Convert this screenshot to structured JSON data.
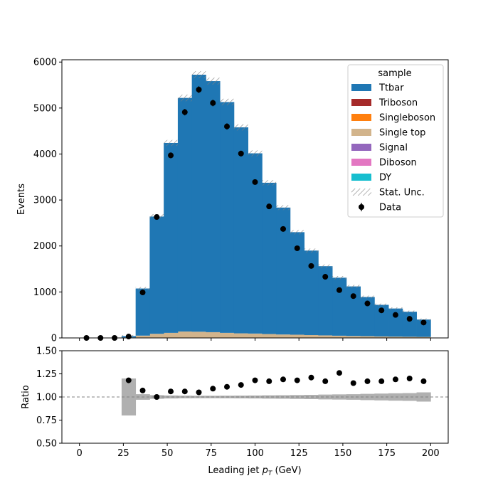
{
  "chart_data": [
    {
      "type": "bar",
      "subtype": "stacked-histogram",
      "bin_edges": [
        0,
        8,
        16,
        24,
        32,
        40,
        48,
        56,
        64,
        72,
        80,
        88,
        96,
        104,
        112,
        120,
        128,
        136,
        144,
        152,
        160,
        168,
        176,
        184,
        192,
        200
      ],
      "ylabel": "Events",
      "ylim": [
        0,
        6050
      ],
      "yticks": [
        0,
        1000,
        2000,
        3000,
        4000,
        5000,
        6000
      ],
      "series": [
        {
          "name": "Single top",
          "color": "#d2b48c",
          "values": [
            0,
            0,
            0,
            10,
            50,
            90,
            110,
            140,
            135,
            125,
            110,
            100,
            95,
            85,
            75,
            70,
            62,
            55,
            48,
            42,
            38,
            32,
            28,
            25,
            22
          ]
        },
        {
          "name": "Ttbar",
          "color": "#1f77b4",
          "values": [
            0,
            0,
            0,
            30,
            1025,
            2550,
            4130,
            5080,
            5590,
            5460,
            5020,
            4480,
            3920,
            3290,
            2760,
            2230,
            1838,
            1505,
            1262,
            1078,
            852,
            688,
            612,
            545,
            378
          ]
        },
        {
          "name": "Triboson",
          "color": "#a52a2a",
          "values": []
        },
        {
          "name": "Singleboson",
          "color": "#ff7f0e",
          "values": []
        },
        {
          "name": "Signal",
          "color": "#9467bd",
          "values": []
        },
        {
          "name": "Diboson",
          "color": "#e377c2",
          "values": []
        },
        {
          "name": "DY",
          "color": "#17becf",
          "values": []
        }
      ],
      "totals": [
        0,
        0,
        0,
        40,
        1075,
        2640,
        4240,
        5220,
        5725,
        5585,
        5130,
        4580,
        4015,
        3375,
        2835,
        2300,
        1900,
        1560,
        1310,
        1120,
        890,
        720,
        640,
        570,
        400
      ],
      "data_points": {
        "name": "Data",
        "x": [
          4,
          12,
          20,
          28,
          36,
          44,
          52,
          60,
          68,
          76,
          84,
          92,
          100,
          108,
          116,
          124,
          132,
          140,
          148,
          156,
          164,
          172,
          180,
          188,
          196
        ],
        "y": [
          0,
          0,
          0,
          30,
          990,
          2630,
          3970,
          4910,
          5400,
          5110,
          4600,
          4010,
          3390,
          2860,
          2370,
          1950,
          1565,
          1330,
          1040,
          910,
          750,
          600,
          500,
          415,
          335
        ]
      },
      "legend": {
        "title": "sample",
        "position": "top-right",
        "entries": [
          {
            "label": "Ttbar",
            "kind": "patch",
            "color": "#1f77b4"
          },
          {
            "label": "Triboson",
            "kind": "patch",
            "color": "#a52a2a"
          },
          {
            "label": "Singleboson",
            "kind": "patch",
            "color": "#ff7f0e"
          },
          {
            "label": "Single top",
            "kind": "patch",
            "color": "#d2b48c"
          },
          {
            "label": "Signal",
            "kind": "patch",
            "color": "#9467bd"
          },
          {
            "label": "Diboson",
            "kind": "patch",
            "color": "#e377c2"
          },
          {
            "label": "DY",
            "kind": "patch",
            "color": "#17becf"
          },
          {
            "label": "Stat. Unc.",
            "kind": "hatch",
            "color": "#808080"
          },
          {
            "label": "Data",
            "kind": "marker",
            "color": "#000000"
          }
        ]
      }
    },
    {
      "type": "scatter",
      "subtype": "ratio-panel",
      "ylabel": "Ratio",
      "xlabel": "Leading jet  pT (GeV)",
      "xlim": [
        -10,
        210
      ],
      "xticks": [
        0,
        25,
        50,
        75,
        100,
        125,
        150,
        175,
        200
      ],
      "ylim": [
        0.5,
        1.5
      ],
      "yticks": [
        "0.50",
        "0.75",
        "1.00",
        "1.25",
        "1.50"
      ],
      "reference_line": 1.0,
      "uncertainty_band_halfwidth": [
        0,
        0,
        0,
        0.2,
        0.03,
        0.02,
        0.016,
        0.014,
        0.013,
        0.013,
        0.014,
        0.015,
        0.016,
        0.018,
        0.019,
        0.021,
        0.023,
        0.026,
        0.028,
        0.03,
        0.034,
        0.037,
        0.04,
        0.042,
        0.05
      ],
      "points": {
        "x": [
          28,
          36,
          44,
          52,
          60,
          68,
          76,
          84,
          92,
          100,
          108,
          116,
          124,
          132,
          140,
          148,
          156,
          164,
          172,
          180,
          188,
          196
        ],
        "y": [
          1.18,
          1.07,
          1.0,
          1.06,
          1.06,
          1.05,
          1.09,
          1.11,
          1.13,
          1.18,
          1.17,
          1.19,
          1.18,
          1.21,
          1.17,
          1.26,
          1.15,
          1.17,
          1.17,
          1.19,
          1.2,
          1.17
        ]
      }
    }
  ]
}
